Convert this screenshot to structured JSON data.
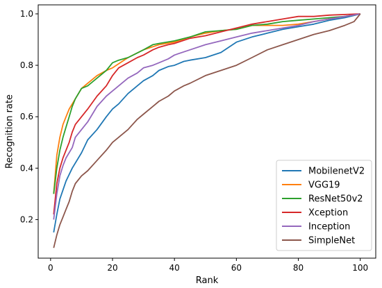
{
  "chart_data": {
    "type": "line",
    "title": "",
    "xlabel": "Rank",
    "ylabel": "Recognition rate",
    "xlim": [
      -4,
      105
    ],
    "ylim": [
      0.05,
      1.035
    ],
    "xticks": [
      0,
      20,
      40,
      60,
      80,
      100
    ],
    "yticks": [
      0.2,
      0.4,
      0.6,
      0.8,
      1.0
    ],
    "xtick_labels": [
      "0",
      "20",
      "40",
      "60",
      "80",
      "100"
    ],
    "ytick_labels": [
      "0.2",
      "0.4",
      "0.6",
      "0.8",
      "1.0"
    ],
    "grid": false,
    "legend_position": "lower-right",
    "series": [
      {
        "name": "MobilenetV2",
        "color": "#1f77b4",
        "points": [
          [
            1,
            0.15
          ],
          [
            2,
            0.22
          ],
          [
            3,
            0.28
          ],
          [
            5,
            0.35
          ],
          [
            7,
            0.4
          ],
          [
            10,
            0.46
          ],
          [
            12,
            0.51
          ],
          [
            15,
            0.55
          ],
          [
            18,
            0.6
          ],
          [
            20,
            0.63
          ],
          [
            22,
            0.65
          ],
          [
            25,
            0.69
          ],
          [
            28,
            0.72
          ],
          [
            30,
            0.74
          ],
          [
            33,
            0.76
          ],
          [
            35,
            0.78
          ],
          [
            38,
            0.795
          ],
          [
            40,
            0.8
          ],
          [
            43,
            0.815
          ],
          [
            45,
            0.82
          ],
          [
            50,
            0.83
          ],
          [
            55,
            0.85
          ],
          [
            60,
            0.89
          ],
          [
            65,
            0.91
          ],
          [
            70,
            0.925
          ],
          [
            75,
            0.94
          ],
          [
            80,
            0.95
          ],
          [
            85,
            0.96
          ],
          [
            90,
            0.975
          ],
          [
            95,
            0.985
          ],
          [
            100,
            1.0
          ]
        ]
      },
      {
        "name": "VGG19",
        "color": "#ff7f0e",
        "points": [
          [
            1,
            0.3
          ],
          [
            2,
            0.45
          ],
          [
            3,
            0.52
          ],
          [
            4,
            0.57
          ],
          [
            5,
            0.6
          ],
          [
            6,
            0.63
          ],
          [
            8,
            0.67
          ],
          [
            10,
            0.71
          ],
          [
            12,
            0.73
          ],
          [
            15,
            0.76
          ],
          [
            18,
            0.78
          ],
          [
            20,
            0.79
          ],
          [
            25,
            0.83
          ],
          [
            30,
            0.86
          ],
          [
            35,
            0.88
          ],
          [
            40,
            0.89
          ],
          [
            45,
            0.91
          ],
          [
            50,
            0.925
          ],
          [
            55,
            0.935
          ],
          [
            60,
            0.94
          ],
          [
            65,
            0.955
          ],
          [
            70,
            0.955
          ],
          [
            75,
            0.955
          ],
          [
            80,
            0.96
          ],
          [
            90,
            0.98
          ],
          [
            100,
            1.0
          ]
        ]
      },
      {
        "name": "ResNet50v2",
        "color": "#2ca02c",
        "points": [
          [
            1,
            0.3
          ],
          [
            2,
            0.4
          ],
          [
            3,
            0.47
          ],
          [
            4,
            0.52
          ],
          [
            5,
            0.56
          ],
          [
            6,
            0.6
          ],
          [
            7,
            0.64
          ],
          [
            8,
            0.67
          ],
          [
            10,
            0.71
          ],
          [
            12,
            0.72
          ],
          [
            15,
            0.75
          ],
          [
            18,
            0.78
          ],
          [
            20,
            0.81
          ],
          [
            22,
            0.82
          ],
          [
            25,
            0.83
          ],
          [
            30,
            0.86
          ],
          [
            33,
            0.88
          ],
          [
            35,
            0.885
          ],
          [
            40,
            0.895
          ],
          [
            45,
            0.91
          ],
          [
            50,
            0.93
          ],
          [
            55,
            0.935
          ],
          [
            60,
            0.94
          ],
          [
            65,
            0.955
          ],
          [
            70,
            0.96
          ],
          [
            75,
            0.97
          ],
          [
            80,
            0.975
          ],
          [
            85,
            0.98
          ],
          [
            90,
            0.985
          ],
          [
            95,
            0.99
          ],
          [
            100,
            1.0
          ]
        ]
      },
      {
        "name": "Xception",
        "color": "#d62728",
        "points": [
          [
            1,
            0.22
          ],
          [
            2,
            0.34
          ],
          [
            3,
            0.4
          ],
          [
            4,
            0.44
          ],
          [
            5,
            0.47
          ],
          [
            6,
            0.5
          ],
          [
            7,
            0.54
          ],
          [
            8,
            0.57
          ],
          [
            10,
            0.6
          ],
          [
            12,
            0.63
          ],
          [
            15,
            0.68
          ],
          [
            18,
            0.72
          ],
          [
            20,
            0.76
          ],
          [
            22,
            0.79
          ],
          [
            25,
            0.81
          ],
          [
            28,
            0.83
          ],
          [
            30,
            0.84
          ],
          [
            33,
            0.86
          ],
          [
            35,
            0.87
          ],
          [
            38,
            0.88
          ],
          [
            40,
            0.885
          ],
          [
            45,
            0.905
          ],
          [
            50,
            0.915
          ],
          [
            55,
            0.93
          ],
          [
            60,
            0.945
          ],
          [
            65,
            0.96
          ],
          [
            70,
            0.97
          ],
          [
            75,
            0.98
          ],
          [
            80,
            0.99
          ],
          [
            85,
            0.99
          ],
          [
            90,
            0.995
          ],
          [
            100,
            1.0
          ]
        ]
      },
      {
        "name": "Inception",
        "color": "#9467bd",
        "points": [
          [
            1,
            0.2
          ],
          [
            2,
            0.3
          ],
          [
            3,
            0.37
          ],
          [
            4,
            0.41
          ],
          [
            5,
            0.44
          ],
          [
            7,
            0.48
          ],
          [
            8,
            0.52
          ],
          [
            10,
            0.55
          ],
          [
            12,
            0.58
          ],
          [
            15,
            0.64
          ],
          [
            18,
            0.68
          ],
          [
            20,
            0.7
          ],
          [
            22,
            0.72
          ],
          [
            25,
            0.75
          ],
          [
            28,
            0.77
          ],
          [
            30,
            0.79
          ],
          [
            33,
            0.8
          ],
          [
            35,
            0.81
          ],
          [
            38,
            0.825
          ],
          [
            40,
            0.84
          ],
          [
            45,
            0.86
          ],
          [
            50,
            0.88
          ],
          [
            55,
            0.895
          ],
          [
            60,
            0.91
          ],
          [
            65,
            0.925
          ],
          [
            70,
            0.935
          ],
          [
            75,
            0.945
          ],
          [
            80,
            0.955
          ],
          [
            85,
            0.97
          ],
          [
            90,
            0.98
          ],
          [
            95,
            0.99
          ],
          [
            100,
            1.0
          ]
        ]
      },
      {
        "name": "SimpleNet",
        "color": "#8c564b",
        "points": [
          [
            1,
            0.09
          ],
          [
            2,
            0.14
          ],
          [
            3,
            0.18
          ],
          [
            4,
            0.21
          ],
          [
            5,
            0.24
          ],
          [
            6,
            0.27
          ],
          [
            7,
            0.31
          ],
          [
            8,
            0.34
          ],
          [
            10,
            0.37
          ],
          [
            12,
            0.39
          ],
          [
            15,
            0.43
          ],
          [
            18,
            0.47
          ],
          [
            20,
            0.5
          ],
          [
            22,
            0.52
          ],
          [
            25,
            0.55
          ],
          [
            28,
            0.59
          ],
          [
            30,
            0.61
          ],
          [
            33,
            0.64
          ],
          [
            35,
            0.66
          ],
          [
            38,
            0.68
          ],
          [
            40,
            0.7
          ],
          [
            43,
            0.72
          ],
          [
            45,
            0.73
          ],
          [
            50,
            0.76
          ],
          [
            55,
            0.78
          ],
          [
            60,
            0.8
          ],
          [
            65,
            0.83
          ],
          [
            70,
            0.86
          ],
          [
            75,
            0.88
          ],
          [
            80,
            0.9
          ],
          [
            85,
            0.92
          ],
          [
            90,
            0.935
          ],
          [
            95,
            0.955
          ],
          [
            98,
            0.97
          ],
          [
            100,
            1.0
          ]
        ]
      }
    ]
  }
}
